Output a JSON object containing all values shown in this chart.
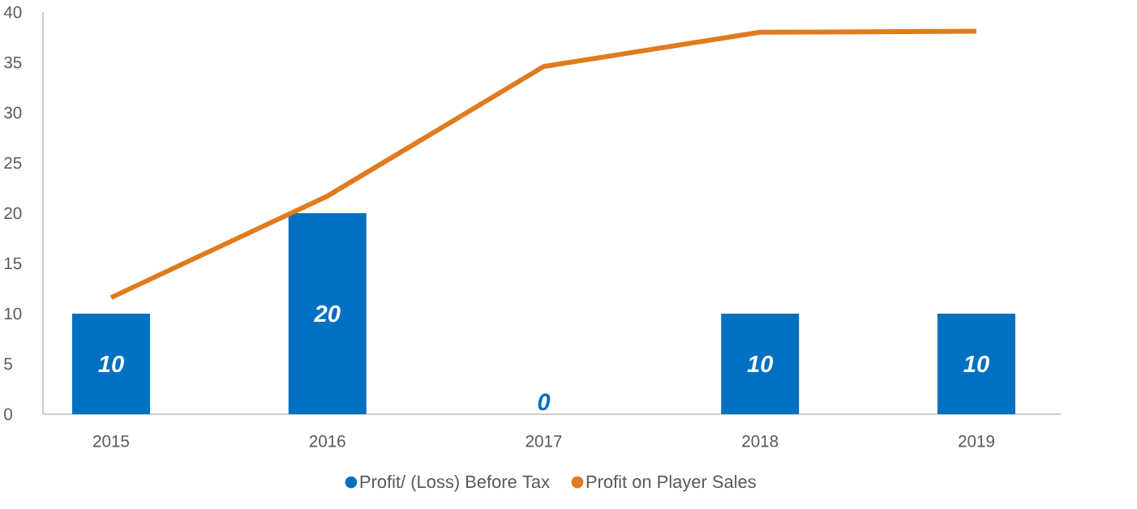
{
  "chart_data": {
    "type": "bar",
    "categories": [
      "2015",
      "2016",
      "2017",
      "2018",
      "2019"
    ],
    "series": [
      {
        "name": "Profit/ (Loss) Before Tax",
        "color": "#0070c0",
        "values": [
          10,
          20,
          0,
          10,
          10
        ],
        "value_labels": [
          "10",
          "20",
          "0",
          "10",
          "10"
        ]
      },
      {
        "name": "Profit on Player Sales",
        "type": "line",
        "color": "#e07b1e",
        "values": [
          11.6,
          21.7,
          34.6,
          38.0,
          38.1
        ]
      }
    ],
    "ylim": [
      0,
      40
    ],
    "yticks": [
      0,
      5,
      10,
      15,
      20,
      25,
      30,
      35,
      40
    ],
    "grid": false,
    "legend": "bottom"
  }
}
